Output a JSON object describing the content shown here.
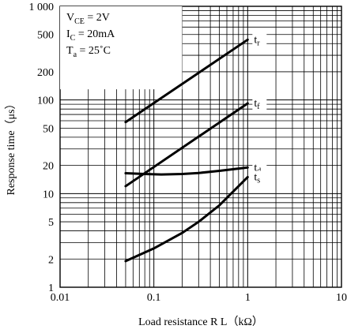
{
  "chart_data": {
    "type": "line",
    "xlabel": "Load resistance R L（kΩ）",
    "ylabel": "Response time（μs）",
    "x_scale": "log",
    "y_scale": "log",
    "xlim": [
      0.01,
      10
    ],
    "ylim": [
      1,
      1000
    ],
    "grid": true,
    "x_ticks": [
      "0.01",
      "0.1",
      "1",
      "10"
    ],
    "y_ticks": [
      {
        "value": 1000,
        "label": "1 000"
      },
      {
        "value": 500,
        "label": "500"
      },
      {
        "value": 200,
        "label": "200"
      },
      {
        "value": 100,
        "label": "100"
      },
      {
        "value": 50,
        "label": "50"
      },
      {
        "value": 20,
        "label": "20"
      },
      {
        "value": 10,
        "label": "10"
      },
      {
        "value": 5,
        "label": "5"
      },
      {
        "value": 2,
        "label": "2"
      },
      {
        "value": 1,
        "label": "1"
      }
    ],
    "conditions": {
      "vce": {
        "main": "V",
        "sub": "CE",
        "rest": " = 2V"
      },
      "ic": {
        "main": "I",
        "sub": "C",
        "rest": " = 20mA"
      },
      "ta": {
        "main": "T",
        "sub": "a",
        "rest": " = 25˚C"
      }
    },
    "series": [
      {
        "name": "tr",
        "label_main": "t",
        "label_sub": "r",
        "x": [
          0.05,
          1
        ],
        "y": [
          58,
          440
        ]
      },
      {
        "name": "tf",
        "label_main": "t",
        "label_sub": "f",
        "x": [
          0.05,
          1
        ],
        "y": [
          12,
          92
        ]
      },
      {
        "name": "td",
        "label_main": "t",
        "label_sub": "d",
        "x": [
          0.05,
          0.08,
          0.12,
          0.2,
          0.3,
          0.5,
          1
        ],
        "y": [
          16.5,
          16.2,
          16,
          16.2,
          16.6,
          17.5,
          19
        ]
      },
      {
        "name": "ts",
        "label_main": "t",
        "label_sub": "s",
        "x": [
          0.05,
          0.1,
          0.2,
          0.3,
          0.5,
          0.7,
          1
        ],
        "y": [
          1.9,
          2.6,
          3.8,
          5,
          7.5,
          10.5,
          15
        ]
      }
    ]
  }
}
